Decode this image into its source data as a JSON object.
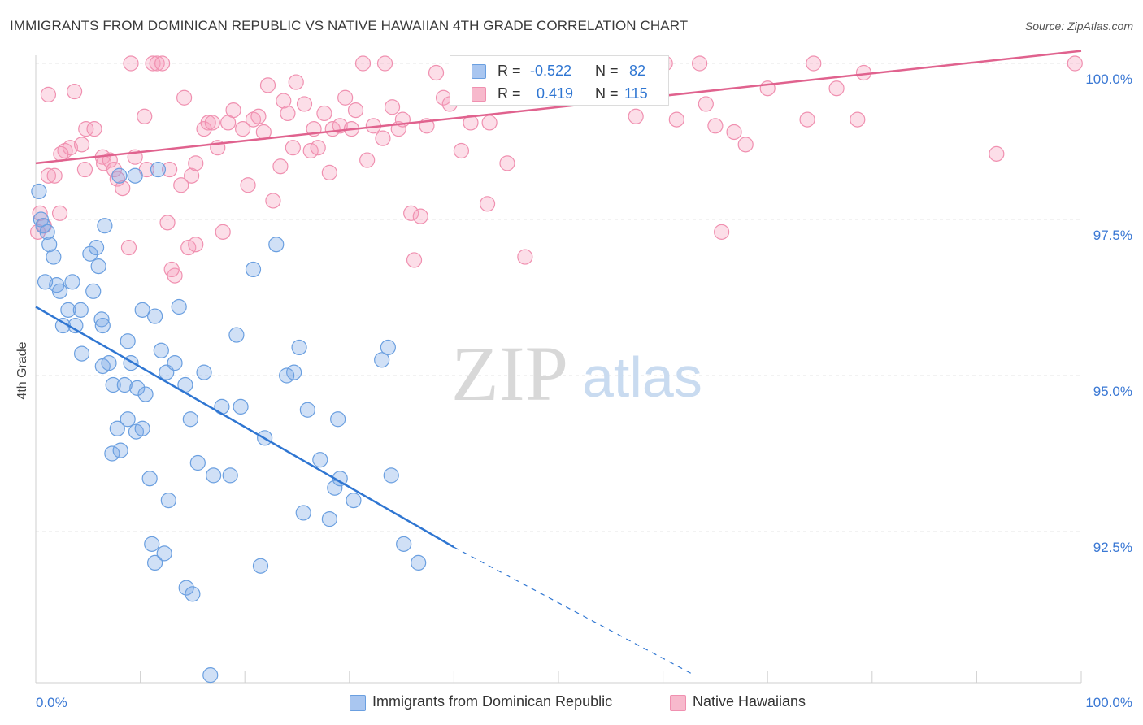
{
  "title": "IMMIGRANTS FROM DOMINICAN REPUBLIC VS NATIVE HAWAIIAN 4TH GRADE CORRELATION CHART",
  "source": "Source: ZipAtlas.com",
  "watermark": {
    "zip": "ZIP",
    "atlas": "atlas"
  },
  "colors": {
    "blue": "#6a9fe0",
    "blue_fill": "rgba(120,165,230,0.35)",
    "blue_line": "#2f76d2",
    "pink": "#f090b0",
    "pink_fill": "rgba(245,160,190,0.35)",
    "pink_line": "#e0628e",
    "axis_label": "#3a78d4",
    "grid": "#e4e4e4"
  },
  "legend_top": {
    "rows": [
      {
        "r_label": "R =",
        "r_value": "-0.522",
        "n_label": "N =",
        "n_value": "82",
        "color": "#a9c6f0"
      },
      {
        "r_label": "R =",
        "r_value": "0.419",
        "n_label": "N =",
        "n_value": "115",
        "color": "#f7b9cc"
      }
    ]
  },
  "legend_bottom": {
    "items": [
      {
        "label": "Immigrants from Dominican Republic",
        "color": "#a9c6f0"
      },
      {
        "label": "Native Hawaiians",
        "color": "#f7b9cc"
      }
    ]
  },
  "chart_data": {
    "type": "scatter",
    "title": "IMMIGRANTS FROM DOMINICAN REPUBLIC VS NATIVE HAWAIIAN 4TH GRADE CORRELATION CHART",
    "xlabel": "",
    "ylabel": "4th Grade",
    "xlim": [
      0,
      100
    ],
    "ylim": [
      90.2,
      100.4
    ],
    "x_tick_labels": [
      "0.0%",
      "100.0%"
    ],
    "y_ticks": [
      92.5,
      95.0,
      97.5,
      100.0
    ],
    "y_tick_labels": [
      "92.5%",
      "95.0%",
      "97.5%",
      "100.0%"
    ],
    "grid": true,
    "legend": "bottom",
    "series": [
      {
        "name": "Immigrants from Dominican Republic",
        "color": "#6a9fe0",
        "r": -0.522,
        "n": 82,
        "trend": {
          "x": [
            0,
            40
          ],
          "y": [
            96.1,
            92.25
          ],
          "dash_to_x": 63,
          "dash_to_y": 90.2
        },
        "points": [
          [
            0.3,
            97.95
          ],
          [
            0.5,
            97.5
          ],
          [
            0.7,
            97.4
          ],
          [
            1.3,
            97.1
          ],
          [
            1.7,
            96.9
          ],
          [
            2.0,
            96.45
          ],
          [
            2.3,
            96.35
          ],
          [
            2.6,
            95.8
          ],
          [
            3.1,
            96.05
          ],
          [
            3.5,
            96.5
          ],
          [
            3.8,
            95.8
          ],
          [
            4.3,
            96.05
          ],
          [
            4.4,
            95.35
          ],
          [
            5.2,
            96.95
          ],
          [
            5.5,
            96.35
          ],
          [
            5.8,
            97.05
          ],
          [
            6.0,
            96.75
          ],
          [
            6.3,
            95.9
          ],
          [
            6.4,
            95.8
          ],
          [
            6.6,
            97.4
          ],
          [
            6.4,
            95.15
          ],
          [
            7.0,
            95.2
          ],
          [
            7.4,
            94.85
          ],
          [
            7.3,
            93.75
          ],
          [
            7.8,
            94.15
          ],
          [
            8.1,
            93.8
          ],
          [
            8.5,
            94.85
          ],
          [
            8.8,
            94.3
          ],
          [
            8.8,
            95.55
          ],
          [
            9.1,
            95.2
          ],
          [
            9.6,
            94.1
          ],
          [
            9.7,
            94.8
          ],
          [
            10.2,
            94.15
          ],
          [
            10.2,
            96.05
          ],
          [
            10.5,
            94.7
          ],
          [
            10.9,
            93.35
          ],
          [
            11.1,
            92.3
          ],
          [
            11.4,
            95.95
          ],
          [
            11.4,
            92.0
          ],
          [
            11.7,
            98.3
          ],
          [
            12.0,
            95.4
          ],
          [
            12.3,
            92.15
          ],
          [
            12.5,
            95.05
          ],
          [
            12.7,
            93.0
          ],
          [
            13.3,
            95.2
          ],
          [
            13.7,
            96.1
          ],
          [
            14.3,
            94.85
          ],
          [
            14.4,
            91.6
          ],
          [
            14.8,
            94.3
          ],
          [
            15.0,
            91.5
          ],
          [
            16.1,
            95.05
          ],
          [
            16.7,
            90.2
          ],
          [
            17.0,
            93.4
          ],
          [
            17.8,
            94.5
          ],
          [
            18.6,
            93.4
          ],
          [
            19.2,
            95.65
          ],
          [
            19.6,
            94.5
          ],
          [
            20.8,
            96.7
          ],
          [
            21.5,
            91.95
          ],
          [
            21.9,
            94.0
          ],
          [
            23.0,
            97.1
          ],
          [
            24.7,
            95.05
          ],
          [
            25.2,
            95.45
          ],
          [
            25.6,
            92.8
          ],
          [
            26.0,
            94.45
          ],
          [
            27.2,
            93.65
          ],
          [
            28.1,
            92.7
          ],
          [
            28.6,
            93.2
          ],
          [
            28.9,
            94.3
          ],
          [
            29.1,
            93.35
          ],
          [
            30.4,
            93.0
          ],
          [
            33.1,
            95.25
          ],
          [
            33.7,
            95.45
          ],
          [
            34.0,
            93.4
          ],
          [
            35.2,
            92.3
          ],
          [
            36.6,
            92.0
          ],
          [
            9.5,
            98.2
          ],
          [
            8.0,
            98.2
          ],
          [
            1.1,
            97.3
          ],
          [
            0.9,
            96.5
          ],
          [
            15.5,
            93.6
          ],
          [
            24.0,
            95.0
          ]
        ]
      },
      {
        "name": "Native Hawaiians",
        "color": "#f090b0",
        "r": 0.419,
        "n": 115,
        "trend": {
          "x": [
            0,
            100
          ],
          "y": [
            98.4,
            100.2
          ]
        },
        "points": [
          [
            0.2,
            97.3
          ],
          [
            0.4,
            97.6
          ],
          [
            0.8,
            97.4
          ],
          [
            1.2,
            98.2
          ],
          [
            1.8,
            98.2
          ],
          [
            2.3,
            97.6
          ],
          [
            2.8,
            98.6
          ],
          [
            3.3,
            98.65
          ],
          [
            3.7,
            99.55
          ],
          [
            4.4,
            98.7
          ],
          [
            4.7,
            98.3
          ],
          [
            4.8,
            98.95
          ],
          [
            5.6,
            98.95
          ],
          [
            6.4,
            98.5
          ],
          [
            6.5,
            98.4
          ],
          [
            7.1,
            98.45
          ],
          [
            7.5,
            98.3
          ],
          [
            7.8,
            98.15
          ],
          [
            8.3,
            98.0
          ],
          [
            8.9,
            97.05
          ],
          [
            9.1,
            100.0
          ],
          [
            9.5,
            98.5
          ],
          [
            10.4,
            99.15
          ],
          [
            10.6,
            98.3
          ],
          [
            11.2,
            100.0
          ],
          [
            11.6,
            100.0
          ],
          [
            12.1,
            100.0
          ],
          [
            12.6,
            97.45
          ],
          [
            12.8,
            98.3
          ],
          [
            13.3,
            96.6
          ],
          [
            13.9,
            98.05
          ],
          [
            14.2,
            99.45
          ],
          [
            14.6,
            97.05
          ],
          [
            14.9,
            98.2
          ],
          [
            15.3,
            98.4
          ],
          [
            16.1,
            98.95
          ],
          [
            16.5,
            99.05
          ],
          [
            16.9,
            99.05
          ],
          [
            17.4,
            98.65
          ],
          [
            17.9,
            97.3
          ],
          [
            18.4,
            99.05
          ],
          [
            18.9,
            99.25
          ],
          [
            19.8,
            98.95
          ],
          [
            20.3,
            98.05
          ],
          [
            20.8,
            99.1
          ],
          [
            21.3,
            99.15
          ],
          [
            21.8,
            98.9
          ],
          [
            22.2,
            99.65
          ],
          [
            22.7,
            97.8
          ],
          [
            23.4,
            98.35
          ],
          [
            23.7,
            99.4
          ],
          [
            24.1,
            99.2
          ],
          [
            24.6,
            98.65
          ],
          [
            24.9,
            99.7
          ],
          [
            25.7,
            99.35
          ],
          [
            26.3,
            98.6
          ],
          [
            26.6,
            98.95
          ],
          [
            27.0,
            98.65
          ],
          [
            27.6,
            99.2
          ],
          [
            28.1,
            98.25
          ],
          [
            28.4,
            98.95
          ],
          [
            29.1,
            99.0
          ],
          [
            29.6,
            99.45
          ],
          [
            30.2,
            98.95
          ],
          [
            30.6,
            99.25
          ],
          [
            31.3,
            100.0
          ],
          [
            31.7,
            98.45
          ],
          [
            32.3,
            99.0
          ],
          [
            33.2,
            98.8
          ],
          [
            34.1,
            99.3
          ],
          [
            34.7,
            98.95
          ],
          [
            35.1,
            99.1
          ],
          [
            35.9,
            97.6
          ],
          [
            36.2,
            96.85
          ],
          [
            36.8,
            97.55
          ],
          [
            37.4,
            99.0
          ],
          [
            38.3,
            99.85
          ],
          [
            39.0,
            99.45
          ],
          [
            39.6,
            99.35
          ],
          [
            40.3,
            99.5
          ],
          [
            40.7,
            98.6
          ],
          [
            41.6,
            99.05
          ],
          [
            42.2,
            100.0
          ],
          [
            43.2,
            97.75
          ],
          [
            43.4,
            99.05
          ],
          [
            45.1,
            98.4
          ],
          [
            46.1,
            100.0
          ],
          [
            46.8,
            96.9
          ],
          [
            48.7,
            100.0
          ],
          [
            50.4,
            99.5
          ],
          [
            53.3,
            100.0
          ],
          [
            54.9,
            100.0
          ],
          [
            56.7,
            99.55
          ],
          [
            60.2,
            100.0
          ],
          [
            61.3,
            99.1
          ],
          [
            63.5,
            100.0
          ],
          [
            64.1,
            99.35
          ],
          [
            65.0,
            99.0
          ],
          [
            65.6,
            97.3
          ],
          [
            66.8,
            98.9
          ],
          [
            67.9,
            98.7
          ],
          [
            70.0,
            99.6
          ],
          [
            73.8,
            99.1
          ],
          [
            74.4,
            100.0
          ],
          [
            76.6,
            99.6
          ],
          [
            78.6,
            99.1
          ],
          [
            79.2,
            99.85
          ],
          [
            91.9,
            98.55
          ],
          [
            99.4,
            100.0
          ],
          [
            1.2,
            99.5
          ],
          [
            2.4,
            98.55
          ],
          [
            15.3,
            97.1
          ],
          [
            33.4,
            100.0
          ],
          [
            13.0,
            96.7
          ],
          [
            57.4,
            99.15
          ]
        ]
      }
    ]
  }
}
